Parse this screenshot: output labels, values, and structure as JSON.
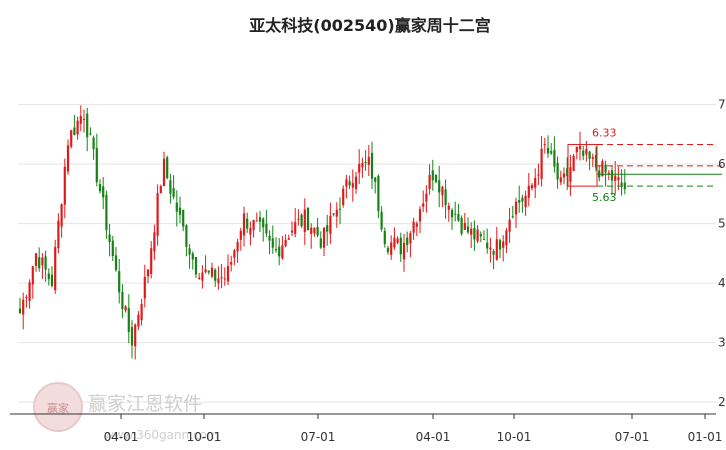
{
  "title": "亚太科技(002540)赢家周十二宫",
  "watermark": {
    "brand": "赢家江恩软件",
    "url": "www.360gann.com",
    "seal": "赢家"
  },
  "colors": {
    "up": "#e0191b",
    "down": "#148214",
    "grid": "#e5e5e5",
    "axis": "#333333"
  },
  "chart_data": {
    "type": "candlestick",
    "title": "亚太科技(002540)赢家周十二宫",
    "ylim": [
      2,
      7.8
    ],
    "y_ticks": [
      "7",
      "6",
      "5",
      "4",
      "3",
      "2"
    ],
    "x_ticks": [
      "04-01",
      "10-01",
      "07-01",
      "04-01",
      "10-01",
      "07-01",
      "01-01"
    ],
    "annotations": [
      {
        "label": "6.33",
        "value": 6.33,
        "color": "#e0191b",
        "style": "dashed"
      },
      {
        "label": "5.63",
        "value": 5.63,
        "color": "#148214",
        "style": "dashed"
      }
    ],
    "extra_lines": [
      {
        "value": 5.97,
        "color": "#e0191b",
        "style": "dashed"
      },
      {
        "value": 5.83,
        "color": "#148214",
        "style": "solid"
      }
    ],
    "boxes": [
      {
        "y_low": 5.63,
        "y_high": 6.33,
        "color": "#e0191b"
      }
    ],
    "close_anchors": [
      3.5,
      4.5,
      4.0,
      6.4,
      6.9,
      5.6,
      4.2,
      3.0,
      4.2,
      6.0,
      5.1,
      4.3,
      4.1,
      4.1,
      5.1,
      4.9,
      4.5,
      4.9,
      5.1,
      4.7,
      5.3,
      5.9,
      6.0,
      4.7,
      4.6,
      5.2,
      5.9,
      5.3,
      4.9,
      4.7,
      4.6,
      5.3,
      5.5,
      6.3,
      5.6,
      6.2,
      6.0,
      5.8,
      5.6
    ]
  }
}
